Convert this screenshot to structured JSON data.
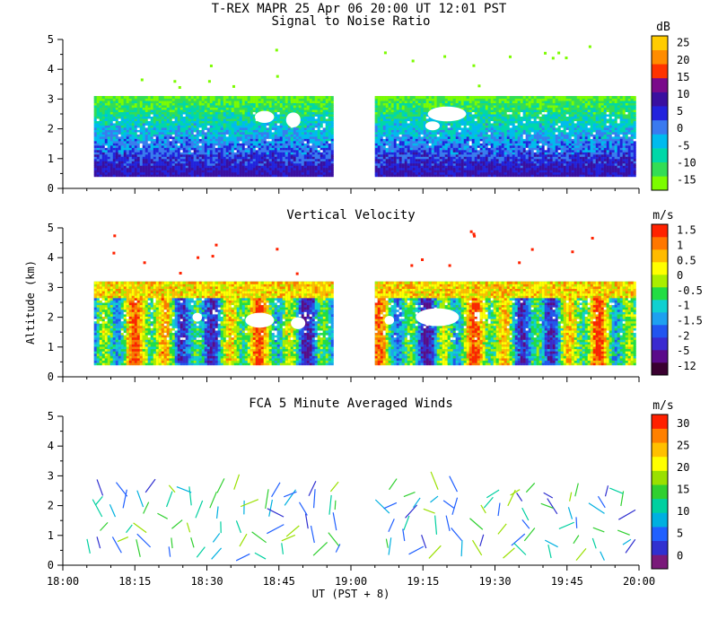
{
  "header": {
    "title": "T-REX  MAPR 25 Apr 06  20:00 UT  12:01  PST"
  },
  "x_axis": {
    "label": "UT  (PST + 8)",
    "ticks": [
      "18:00",
      "18:15",
      "18:30",
      "18:45",
      "19:00",
      "19:15",
      "19:30",
      "19:45",
      "20:00"
    ],
    "range_minutes": [
      0,
      120
    ]
  },
  "colors": {
    "snr": [
      "#7cfc00",
      "#33dd55",
      "#00d8a8",
      "#00bbee",
      "#3a7af0",
      "#2222dd",
      "#3a0fa0",
      "#7a0a8a",
      "#ff3300",
      "#ff8c00",
      "#ffcc00"
    ],
    "vel": [
      "#3a0030",
      "#5a0a8a",
      "#3a2ad0",
      "#2255f0",
      "#1ea0f0",
      "#10d0d0",
      "#22dd44",
      "#aaee00",
      "#ffff00",
      "#ffbb00",
      "#ff7700",
      "#ff2200"
    ],
    "wind": [
      "#7a1a7a",
      "#3030d0",
      "#2060ff",
      "#00b0e0",
      "#00d0a0",
      "#30d030",
      "#9ae000",
      "#ffff00",
      "#ffc000",
      "#ff8000",
      "#ff2000"
    ]
  },
  "chart_data": [
    {
      "type": "heatmap",
      "title": "Signal to Noise Ratio",
      "ylabel": "",
      "ylim": [
        0,
        5
      ],
      "yticks": [
        "0",
        "1",
        "2",
        "3",
        "4",
        "5"
      ],
      "colorbar_unit": "dB",
      "colorbar_labels": [
        "-15",
        "-10",
        "-5",
        "0",
        "5",
        "10",
        "15",
        "20",
        "25"
      ],
      "data_gap_minutes": [
        56,
        65
      ],
      "echo_top_km": 3.1
    },
    {
      "type": "heatmap",
      "title": "Vertical Velocity",
      "ylabel": "Altitude (km)",
      "ylim": [
        0,
        5
      ],
      "yticks": [
        "0",
        "1",
        "2",
        "3",
        "4",
        "5"
      ],
      "colorbar_unit": "m/s",
      "colorbar_labels": [
        "-12",
        "-5",
        "-2",
        "-1.5",
        "-1",
        "-0.5",
        "0",
        "0.5",
        "1",
        "1.5"
      ],
      "data_gap_minutes": [
        56,
        65
      ],
      "echo_top_km": 3.2
    },
    {
      "type": "scatter",
      "title": "FCA 5 Minute Averaged Winds",
      "ylabel": "",
      "ylim": [
        0,
        5
      ],
      "yticks": [
        "0",
        "1",
        "2",
        "3",
        "4",
        "5"
      ],
      "colorbar_unit": "m/s",
      "colorbar_labels": [
        "0",
        "5",
        "10",
        "15",
        "20",
        "25",
        "30"
      ],
      "profile_times_minutes": [
        7,
        12,
        17,
        22,
        27,
        32,
        37,
        42,
        47,
        52,
        57,
        67,
        72,
        77,
        82,
        87,
        92,
        97,
        102,
        107,
        112,
        117
      ],
      "gate_altitudes_km": [
        0.3,
        0.7,
        1.1,
        1.6,
        2.0,
        2.4
      ]
    }
  ]
}
